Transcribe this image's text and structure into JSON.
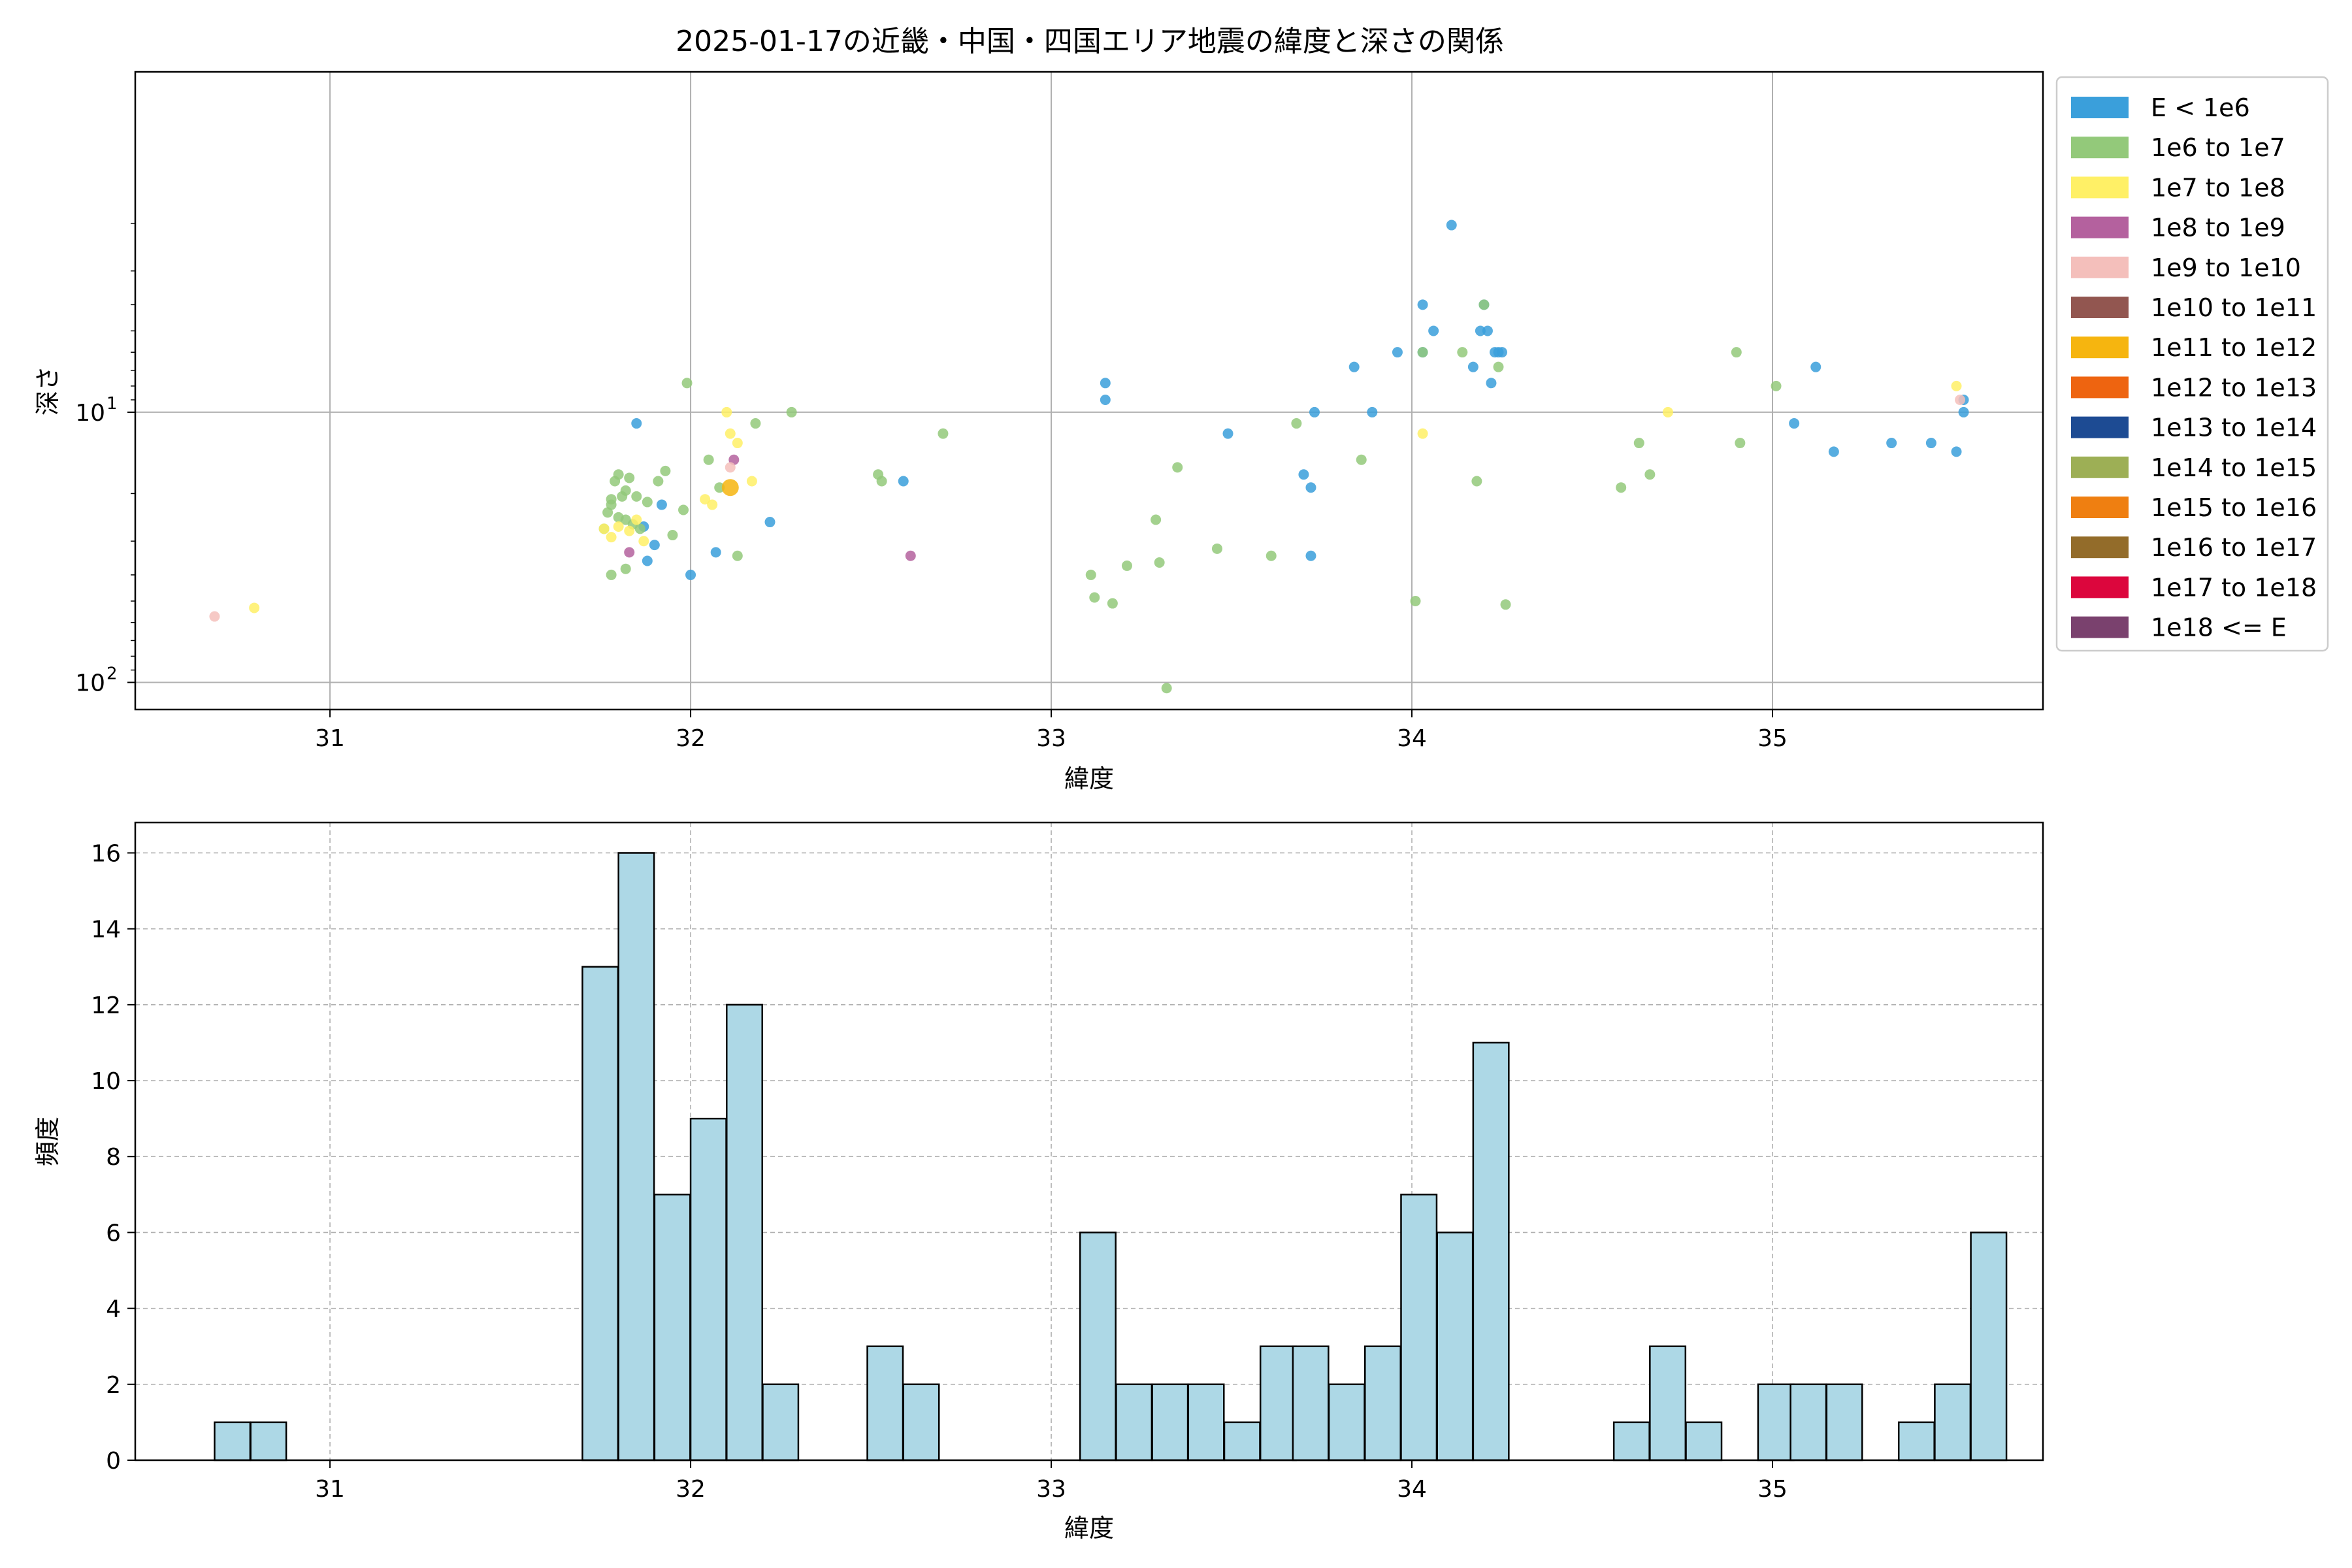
{
  "chart_data": [
    {
      "type": "scatter",
      "title": "2025-01-17の近畿・中国・四国エリア地震の緯度と深さの関係",
      "xlabel": "緯度",
      "ylabel": "深さ",
      "xlim": [
        30.46,
        35.75
      ],
      "ylim": [
        126,
        0.55
      ],
      "y_scale": "log",
      "y_inverted": true,
      "grid": true,
      "x_ticks": [
        "31",
        "32",
        "33",
        "34",
        "35"
      ],
      "y_ticks": [
        {
          "value": 10,
          "base": "10",
          "exp": "1"
        },
        {
          "value": 100,
          "base": "10",
          "exp": "2"
        }
      ],
      "legend_position": "outside right",
      "series": [
        {
          "name": "E < 1e6",
          "color": "#3a9fdb",
          "points": [
            [
              31.85,
              11
            ],
            [
              31.88,
              35.5
            ],
            [
              31.87,
              26.5
            ],
            [
              31.92,
              22
            ],
            [
              31.9,
              31
            ],
            [
              32.0,
              40
            ],
            [
              32.07,
              33
            ],
            [
              32.22,
              25.5
            ],
            [
              32.59,
              18
            ],
            [
              33.15,
              9
            ],
            [
              33.15,
              7.8
            ],
            [
              33.49,
              12
            ],
            [
              33.73,
              10
            ],
            [
              33.7,
              17
            ],
            [
              33.72,
              19
            ],
            [
              33.72,
              34
            ],
            [
              33.89,
              10
            ],
            [
              33.84,
              6.8
            ],
            [
              33.96,
              6
            ],
            [
              34.03,
              4
            ],
            [
              34.03,
              6
            ],
            [
              34.06,
              5
            ],
            [
              34.11,
              2.03
            ],
            [
              34.17,
              6.8
            ],
            [
              34.19,
              5
            ],
            [
              34.2,
              4
            ],
            [
              34.21,
              5
            ],
            [
              34.22,
              7.8
            ],
            [
              34.23,
              6
            ],
            [
              34.25,
              6
            ],
            [
              34.24,
              6
            ],
            [
              35.06,
              11
            ],
            [
              35.12,
              6.8
            ],
            [
              35.17,
              14
            ],
            [
              35.33,
              13
            ],
            [
              35.44,
              13
            ],
            [
              35.51,
              14
            ],
            [
              35.53,
              9
            ],
            [
              35.53,
              10
            ]
          ]
        },
        {
          "name": "1e6 to 1e7",
          "color": "#93c97a",
          "points": [
            [
              31.76,
              27
            ],
            [
              31.77,
              23.5
            ],
            [
              31.78,
              21
            ],
            [
              31.79,
              18
            ],
            [
              31.8,
              17
            ],
            [
              31.81,
              20.5
            ],
            [
              31.82,
              19.5
            ],
            [
              31.83,
              17.5
            ],
            [
              31.85,
              20.5
            ],
            [
              31.78,
              22
            ],
            [
              31.8,
              24.5
            ],
            [
              31.82,
              25
            ],
            [
              31.84,
              26
            ],
            [
              31.86,
              27
            ],
            [
              31.88,
              21.5
            ],
            [
              31.91,
              18
            ],
            [
              31.93,
              16.5
            ],
            [
              31.95,
              28.5
            ],
            [
              31.98,
              23
            ],
            [
              31.78,
              40
            ],
            [
              31.82,
              38
            ],
            [
              31.99,
              7.8
            ],
            [
              32.05,
              15
            ],
            [
              32.08,
              19
            ],
            [
              32.13,
              34
            ],
            [
              32.18,
              11
            ],
            [
              32.28,
              10
            ],
            [
              32.52,
              17
            ],
            [
              32.53,
              18
            ],
            [
              32.7,
              12
            ],
            [
              33.11,
              40
            ],
            [
              33.12,
              48.5
            ],
            [
              33.17,
              51
            ],
            [
              33.21,
              37
            ],
            [
              33.29,
              25
            ],
            [
              33.3,
              36
            ],
            [
              33.35,
              16
            ],
            [
              33.46,
              32
            ],
            [
              33.61,
              34
            ],
            [
              33.68,
              11
            ],
            [
              33.86,
              15
            ],
            [
              34.01,
              50
            ],
            [
              34.03,
              6
            ],
            [
              34.14,
              6
            ],
            [
              34.18,
              18
            ],
            [
              34.2,
              4
            ],
            [
              34.24,
              6.8
            ],
            [
              34.26,
              51.5
            ],
            [
              34.58,
              19
            ],
            [
              34.63,
              13
            ],
            [
              34.66,
              17
            ],
            [
              34.9,
              6
            ],
            [
              34.91,
              13
            ],
            [
              35.01,
              8
            ],
            [
              33.32,
              105
            ]
          ]
        },
        {
          "name": "1e7 to 1e8",
          "color": "#fff066",
          "points": [
            [
              31.76,
              27
            ],
            [
              31.78,
              29
            ],
            [
              31.8,
              26.5
            ],
            [
              31.83,
              27.5
            ],
            [
              31.85,
              25
            ],
            [
              31.87,
              30
            ],
            [
              32.04,
              21
            ],
            [
              32.06,
              22
            ],
            [
              32.1,
              10
            ],
            [
              32.11,
              12
            ],
            [
              32.13,
              13
            ],
            [
              32.17,
              18
            ],
            [
              34.03,
              12
            ],
            [
              34.71,
              10
            ],
            [
              35.51,
              8
            ],
            [
              30.79,
              53
            ]
          ]
        },
        {
          "name": "1e8 to 1e9",
          "color": "#b4619e",
          "points": [
            [
              31.83,
              33
            ],
            [
              32.12,
              15
            ],
            [
              32.61,
              34
            ]
          ]
        },
        {
          "name": "1e9 to 1e10",
          "color": "#f4bfbb",
          "points": [
            [
              30.68,
              57
            ],
            [
              32.11,
              16
            ],
            [
              35.52,
              9
            ]
          ]
        },
        {
          "name": "1e10 to 1e11",
          "color": "#925650",
          "points": []
        },
        {
          "name": "1e11 to 1e12",
          "color": "#f6b50f",
          "points": [
            [
              32.11,
              19
            ]
          ]
        },
        {
          "name": "1e12 to 1e13",
          "color": "#ee6410",
          "points": []
        },
        {
          "name": "1e13 to 1e14",
          "color": "#1d4b93",
          "points": []
        },
        {
          "name": "1e14 to 1e15",
          "color": "#9daf55",
          "points": []
        },
        {
          "name": "1e15 to 1e16",
          "color": "#ef7f11",
          "points": []
        },
        {
          "name": "1e16 to 1e17",
          "color": "#936c2a",
          "points": []
        },
        {
          "name": "1e17 to 1e18",
          "color": "#dc063d",
          "points": []
        },
        {
          "name": "1e18 <= E",
          "color": "#7a416e",
          "points": []
        }
      ]
    },
    {
      "type": "bar",
      "xlabel": "緯度",
      "ylabel": "頻度",
      "xlim": [
        30.46,
        35.75
      ],
      "ylim": [
        0,
        16.8
      ],
      "grid": true,
      "grid_style": "dashed",
      "bar_color": "#add8e6",
      "edge_color": "#000000",
      "x_ticks": [
        "31",
        "32",
        "33",
        "34",
        "35"
      ],
      "y_ticks": [
        "0",
        "2",
        "4",
        "6",
        "8",
        "10",
        "12",
        "14",
        "16"
      ],
      "bin_width": 0.0987,
      "bins": [
        [
          30.68,
          1
        ],
        [
          30.78,
          1
        ],
        [
          31.7,
          13
        ],
        [
          31.8,
          16
        ],
        [
          31.9,
          7
        ],
        [
          32.0,
          9
        ],
        [
          32.1,
          12
        ],
        [
          32.2,
          2
        ],
        [
          32.49,
          3
        ],
        [
          32.59,
          2
        ],
        [
          33.08,
          6
        ],
        [
          33.18,
          2
        ],
        [
          33.28,
          2
        ],
        [
          33.38,
          2
        ],
        [
          33.48,
          1
        ],
        [
          33.58,
          3
        ],
        [
          33.67,
          3
        ],
        [
          33.77,
          2
        ],
        [
          33.87,
          3
        ],
        [
          33.97,
          7
        ],
        [
          34.07,
          6
        ],
        [
          34.17,
          11
        ],
        [
          34.56,
          1
        ],
        [
          34.66,
          3
        ],
        [
          34.76,
          1
        ],
        [
          34.96,
          2
        ],
        [
          35.05,
          2
        ],
        [
          35.15,
          2
        ],
        [
          35.35,
          1
        ],
        [
          35.45,
          2
        ],
        [
          35.55,
          6
        ]
      ]
    }
  ]
}
